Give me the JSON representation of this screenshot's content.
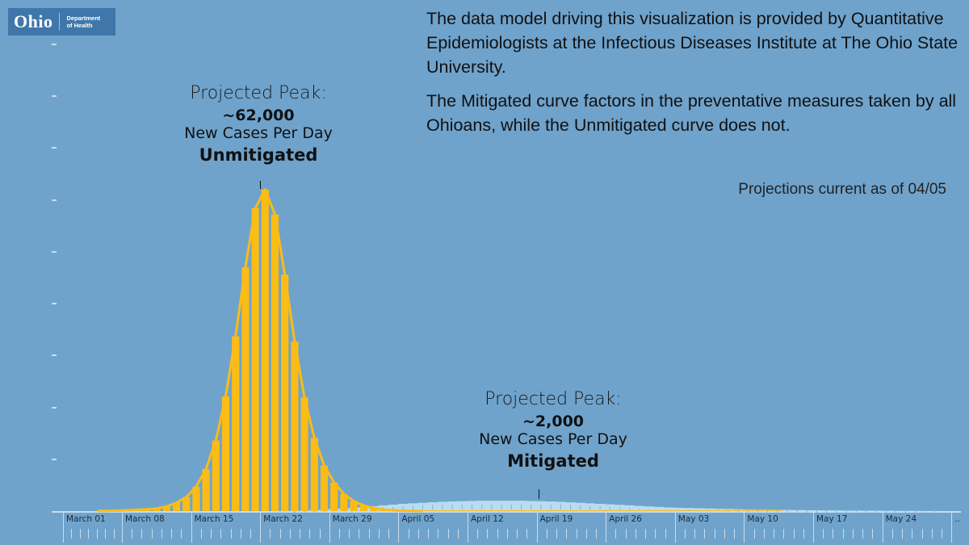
{
  "logo": {
    "wordmark": "Ohio",
    "dept_line1": "Department",
    "dept_line2": "of Health"
  },
  "info": {
    "paragraph1": "The data model driving this visualization is provided by Quantitative Epidemiologists at the Infectious Diseases Institute at The Ohio State University.",
    "paragraph2": "The Mitigated curve factors in the preventative measures taken  by all Ohioans, while the Unmitigated curve does not.",
    "as_of": "Projections current as of 04/05"
  },
  "annotations": {
    "unmitigated": {
      "title": "Projected Peak:",
      "value": "~62,000",
      "unit": "New Cases Per Day",
      "label": "Unmitigated"
    },
    "mitigated": {
      "title": "Projected Peak:",
      "value": "~2,000",
      "unit": "New Cases Per Day",
      "label": "Mitigated"
    }
  },
  "colors": {
    "background": "#6fa3cc",
    "logo_bg": "#3f77aa",
    "unmitigated": "#fbbc15",
    "mitigated": "#b9dcf1",
    "axis": "#c9dcec"
  },
  "chart_data": {
    "type": "bar",
    "title": "",
    "xlabel": "",
    "ylabel": "New Cases Per Day",
    "ylim": [
      0,
      90000
    ],
    "y_ticks": [
      0,
      10000,
      20000,
      30000,
      40000,
      50000,
      60000,
      70000,
      80000,
      90000
    ],
    "y_tick_labels_visible": false,
    "grid": false,
    "legend": "none (inline annotations)",
    "x_tick_labels": [
      "March 01",
      "March 08",
      "March 15",
      "March 22",
      "March 29",
      "April 05",
      "April 12",
      "April 19",
      "April 26",
      "May 03",
      "May 10",
      "May 17",
      "May 24",
      ".."
    ],
    "x_start": "March 01",
    "series": [
      {
        "name": "Unmitigated",
        "style": "bar+line",
        "start_day_index": 4,
        "values": [
          30,
          60,
          100,
          160,
          250,
          350,
          500,
          900,
          1600,
          2700,
          4700,
          8100,
          13600,
          22100,
          33700,
          47000,
          58400,
          62000,
          57200,
          45600,
          32700,
          21900,
          14100,
          8800,
          5500,
          3300,
          1900,
          1100,
          600,
          300,
          150,
          80,
          40,
          20
        ]
      },
      {
        "name": "Mitigated",
        "style": "area",
        "start_day_index": 24,
        "values": [
          50,
          100,
          200,
          300,
          400,
          500,
          650,
          800,
          950,
          1100,
          1250,
          1400,
          1500,
          1600,
          1700,
          1800,
          1850,
          1900,
          1950,
          2000,
          2000,
          2000,
          2000,
          2000,
          1950,
          1900,
          1850,
          1800,
          1700,
          1600,
          1500,
          1400,
          1300,
          1200,
          1100,
          1000,
          900,
          800,
          700,
          650,
          600,
          550,
          500,
          450,
          400,
          350,
          300,
          280,
          260,
          240,
          220,
          200,
          180,
          160,
          140,
          120,
          100,
          90,
          80,
          70,
          60,
          50,
          40,
          30,
          20,
          10
        ]
      }
    ],
    "annotations": [
      {
        "text": "Projected Peak: ~62,000 New Cases Per Day Unmitigated",
        "at": "March 22"
      },
      {
        "text": "Projected Peak: ~2,000 New Cases Per Day Mitigated",
        "at": "April 19"
      }
    ]
  }
}
